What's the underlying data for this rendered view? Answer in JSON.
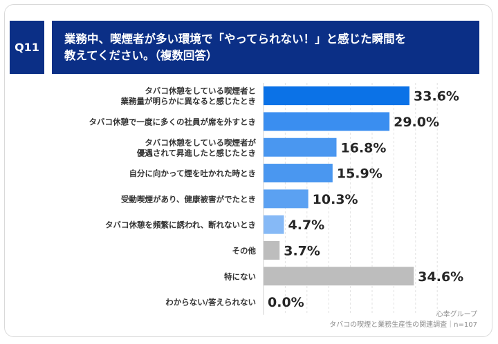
{
  "header": {
    "question_badge": "Q11",
    "question_line1": "業務中、喫煙者が多い環境で「やってられない！」と感じた瞬間を",
    "question_line2": "教えてください。（複数回答）"
  },
  "chart_data": {
    "type": "bar",
    "orientation": "horizontal",
    "categories": [
      [
        "タバコ休憩をしている喫煙者と",
        "業務量が明らかに異なると感じたとき"
      ],
      [
        "タバコ休憩で一度に多くの社員が席を外すとき"
      ],
      [
        "タバコ休憩をしている喫煙者が",
        "優遇されて昇進したと感じたとき"
      ],
      [
        "自分に向かって煙を吐かれた時とき"
      ],
      [
        "受動喫煙があり、健康被害がでたとき"
      ],
      [
        "タバコ休憩を頻繁に誘われ、断れないとき"
      ],
      [
        "その他"
      ],
      [
        "特にない"
      ],
      [
        "わからない/答えられない"
      ]
    ],
    "values": [
      33.6,
      29.0,
      16.8,
      15.9,
      10.3,
      4.7,
      3.7,
      34.6,
      0.0
    ],
    "value_labels": [
      "33.6%",
      "29.0%",
      "16.8%",
      "15.9%",
      "10.3%",
      "4.7%",
      "3.7%",
      "34.6%",
      "0.0%"
    ],
    "bar_colors": [
      "#0b72e7",
      "#3a8ef0",
      "#4a97f0",
      "#4a97f0",
      "#5ba1f2",
      "#86b9f6",
      "#bdbdbd",
      "#bdbdbd",
      "#bdbdbd"
    ],
    "xlim": [
      0,
      40
    ],
    "grid": "vertical dashed",
    "legend": "none",
    "unit": "%"
  },
  "footer": {
    "brand": "心幸グループ",
    "note": "タバコの喫煙と業務生産性の関連調査｜n=107"
  }
}
